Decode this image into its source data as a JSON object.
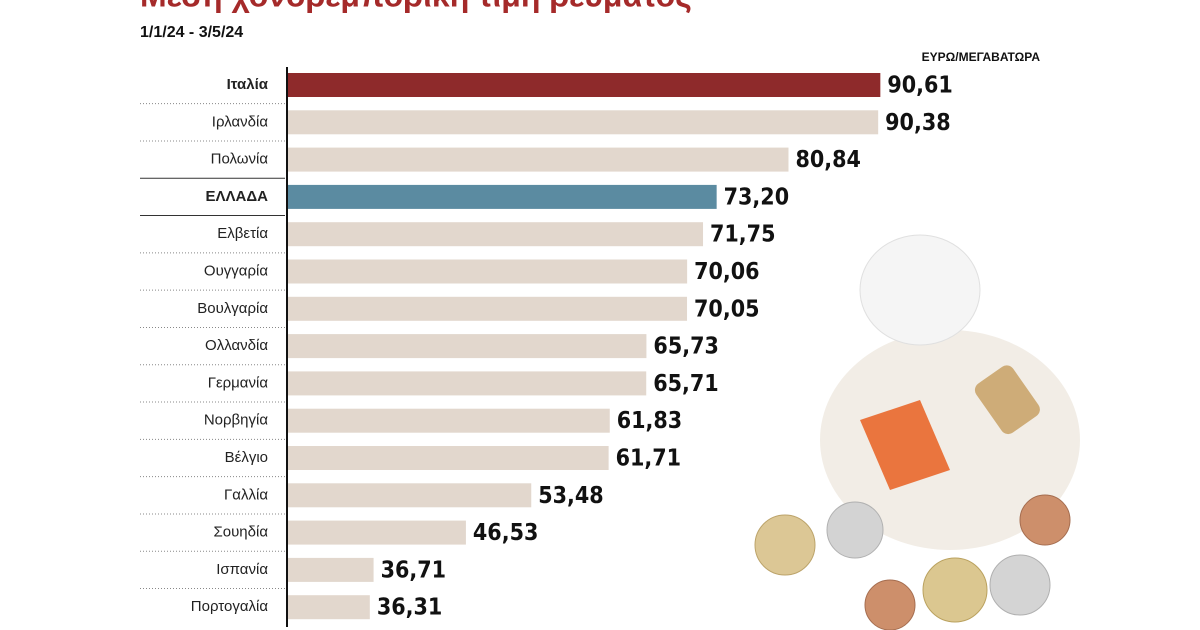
{
  "chart_data": {
    "type": "bar",
    "orientation": "horizontal",
    "title": "Μέση χονδρεμπορική τιμή ρεύματος",
    "subtitle": "1/1/24 - 3/5/24",
    "unit_label": "ΕΥΡΩ/ΜΕΓΑΒΑΤΩΡΑ",
    "categories": [
      "Ιταλία",
      "Ιρλανδία",
      "Πολωνία",
      "ΕΛΛΑΔΑ",
      "Ελβετία",
      "Ουγγαρία",
      "Βουλγαρία",
      "Ολλανδία",
      "Γερμανία",
      "Νορβηγία",
      "Βέλγιο",
      "Γαλλία",
      "Σουηδία",
      "Ισπανία",
      "Πορτογαλία"
    ],
    "values": [
      90.61,
      90.38,
      80.84,
      73.2,
      71.75,
      70.06,
      70.05,
      65.73,
      65.71,
      61.83,
      61.71,
      53.48,
      46.53,
      36.71,
      36.31
    ],
    "value_labels": [
      "90,61",
      "90,38",
      "80,84",
      "73,20",
      "71,75",
      "70,06",
      "70,05",
      "65,73",
      "65,71",
      "61,83",
      "61,71",
      "53,48",
      "46,53",
      "36,71",
      "36,31"
    ],
    "color": "#e2d7cd",
    "colors": [
      "#8e2a2b",
      "#e2d7cd",
      "#e2d7cd",
      "#5b8ba1",
      "#e2d7cd",
      "#e2d7cd",
      "#e2d7cd",
      "#e2d7cd",
      "#e2d7cd",
      "#e2d7cd",
      "#e2d7cd",
      "#e2d7cd",
      "#e2d7cd",
      "#e2d7cd",
      "#e2d7cd"
    ],
    "xlim": [
      27.5,
      91
    ]
  }
}
